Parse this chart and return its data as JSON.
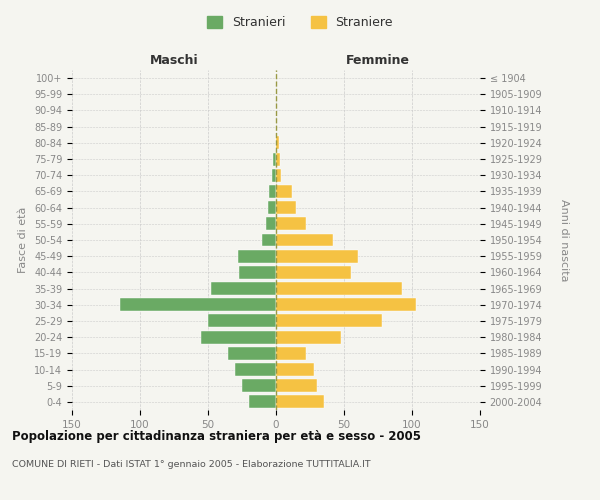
{
  "age_groups_bottom_to_top": [
    "0-4",
    "5-9",
    "10-14",
    "15-19",
    "20-24",
    "25-29",
    "30-34",
    "35-39",
    "40-44",
    "45-49",
    "50-54",
    "55-59",
    "60-64",
    "65-69",
    "70-74",
    "75-79",
    "80-84",
    "85-89",
    "90-94",
    "95-99",
    "100+"
  ],
  "birth_years_bottom_to_top": [
    "2000-2004",
    "1995-1999",
    "1990-1994",
    "1985-1989",
    "1980-1984",
    "1975-1979",
    "1970-1974",
    "1965-1969",
    "1960-1964",
    "1955-1959",
    "1950-1954",
    "1945-1949",
    "1940-1944",
    "1935-1939",
    "1930-1934",
    "1925-1929",
    "1920-1924",
    "1915-1919",
    "1910-1914",
    "1905-1909",
    "≤ 1904"
  ],
  "maschi_bottom_to_top": [
    20,
    25,
    30,
    35,
    55,
    50,
    115,
    48,
    27,
    28,
    10,
    7,
    6,
    5,
    3,
    2,
    0,
    0,
    0,
    0,
    0
  ],
  "femmine_bottom_to_top": [
    35,
    30,
    28,
    22,
    48,
    78,
    103,
    93,
    55,
    60,
    42,
    22,
    15,
    12,
    4,
    3,
    2,
    0,
    0,
    0,
    0
  ],
  "color_maschi": "#6aaa64",
  "color_femmine": "#f5c243",
  "title": "Popolazione per cittadinanza straniera per età e sesso - 2005",
  "subtitle": "COMUNE DI RIETI - Dati ISTAT 1° gennaio 2005 - Elaborazione TUTTITALIA.IT",
  "legend_maschi": "Stranieri",
  "legend_femmine": "Straniere",
  "header_left": "Maschi",
  "header_right": "Femmine",
  "ylabel_left": "Fasce di età",
  "ylabel_right": "Anni di nascita",
  "xlim": 150,
  "background_color": "#f5f5f0",
  "grid_color": "#cccccc",
  "center_line_color": "#999944",
  "tick_color": "#888888",
  "title_color": "#111111",
  "subtitle_color": "#555555"
}
